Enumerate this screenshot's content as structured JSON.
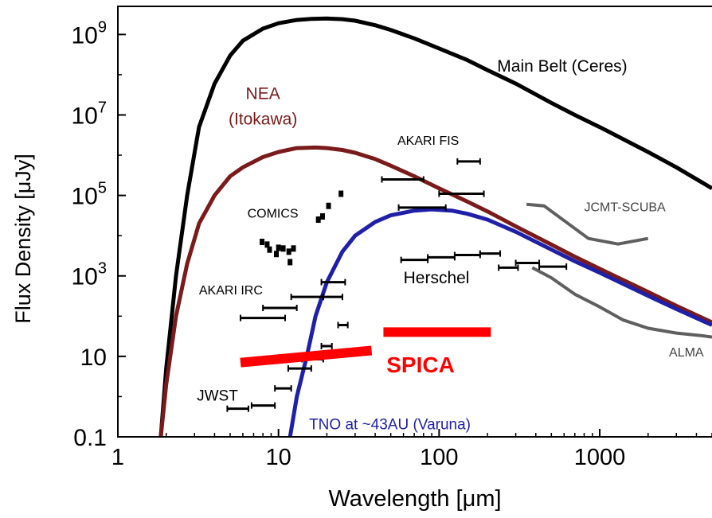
{
  "chart_data": {
    "type": "line",
    "xlabel": "Wavelength   [μm]",
    "ylabel": "Flux Density   [μJy]",
    "x_scale": "log",
    "y_scale": "log",
    "xlim": [
      1,
      5000
    ],
    "ylim": [
      0.1,
      5000000000
    ],
    "x_ticks": [
      {
        "value": 1,
        "label": "1"
      },
      {
        "value": 10,
        "label": "10"
      },
      {
        "value": 100,
        "label": "100"
      },
      {
        "value": 1000,
        "label": "1000"
      }
    ],
    "y_ticks": [
      {
        "value": 0.1,
        "base": "0.1",
        "exp": ""
      },
      {
        "value": 10,
        "base": "10",
        "exp": ""
      },
      {
        "value": 1000,
        "base": "10",
        "exp": "3"
      },
      {
        "value": 100000,
        "base": "10",
        "exp": "5"
      },
      {
        "value": 10000000,
        "base": "10",
        "exp": "7"
      },
      {
        "value": 1000000000,
        "base": "10",
        "exp": "9"
      }
    ],
    "colors": {
      "ceres": "#000000",
      "nea": "#7a1a1a",
      "tno": "#1f1fa8",
      "instruments": "#5f5f5f",
      "spica": "#ff0000",
      "points": "#000000"
    },
    "series": [
      {
        "name": "Main Belt (Ceres)",
        "color": "#000000",
        "points": [
          [
            1.85,
            0.1
          ],
          [
            2.0,
            5
          ],
          [
            2.3,
            1000
          ],
          [
            2.7,
            100000
          ],
          [
            3.2,
            5000000
          ],
          [
            4,
            60000000
          ],
          [
            5,
            300000000
          ],
          [
            6,
            700000000
          ],
          [
            8,
            1400000000
          ],
          [
            10,
            1900000000
          ],
          [
            13,
            2300000000
          ],
          [
            16,
            2450000000
          ],
          [
            20,
            2500000000
          ],
          [
            25,
            2400000000
          ],
          [
            30,
            2200000000
          ],
          [
            40,
            1700000000
          ],
          [
            50,
            1300000000
          ],
          [
            70,
            800000000
          ],
          [
            100,
            450000000
          ],
          [
            150,
            230000000
          ],
          [
            200,
            130000000
          ],
          [
            300,
            60000000
          ],
          [
            500,
            20000000
          ],
          [
            700,
            10000000
          ],
          [
            1000,
            5000000
          ],
          [
            2000,
            1200000
          ],
          [
            3000,
            500000
          ],
          [
            5000,
            150000
          ]
        ]
      },
      {
        "name": "NEA (Itokawa)",
        "color": "#7a1a1a",
        "points": [
          [
            1.85,
            0.1
          ],
          [
            2.0,
            2
          ],
          [
            2.3,
            100
          ],
          [
            2.7,
            2000
          ],
          [
            3.2,
            20000
          ],
          [
            4,
            100000
          ],
          [
            5,
            300000
          ],
          [
            6,
            500000
          ],
          [
            8,
            900000
          ],
          [
            10,
            1200000
          ],
          [
            13,
            1500000
          ],
          [
            17,
            1550000
          ],
          [
            20,
            1500000
          ],
          [
            25,
            1350000
          ],
          [
            30,
            1150000
          ],
          [
            40,
            800000
          ],
          [
            50,
            550000
          ],
          [
            70,
            300000
          ],
          [
            100,
            150000
          ],
          [
            150,
            70000
          ],
          [
            200,
            40000
          ],
          [
            300,
            17000
          ],
          [
            500,
            6000
          ],
          [
            700,
            3000
          ],
          [
            1000,
            1500
          ],
          [
            2000,
            400
          ],
          [
            3000,
            180
          ],
          [
            5000,
            70
          ]
        ]
      },
      {
        "name": "TNO at ~43AU (Varuna)",
        "color": "#1f1fa8",
        "points": [
          [
            11.8,
            0.1
          ],
          [
            13,
            1
          ],
          [
            15,
            10
          ],
          [
            17,
            100
          ],
          [
            20,
            700
          ],
          [
            25,
            4000
          ],
          [
            30,
            10000
          ],
          [
            40,
            22000
          ],
          [
            50,
            32000
          ],
          [
            70,
            42000
          ],
          [
            90,
            45000
          ],
          [
            120,
            42000
          ],
          [
            150,
            35000
          ],
          [
            200,
            25000
          ],
          [
            300,
            12500
          ],
          [
            500,
            4500
          ],
          [
            700,
            2300
          ],
          [
            1000,
            1200
          ],
          [
            2000,
            320
          ],
          [
            3000,
            150
          ],
          [
            5000,
            60
          ]
        ]
      }
    ],
    "instrument_curves": [
      {
        "name": "JCMT-SCUBA",
        "color": "#5f5f5f",
        "points": [
          [
            350,
            60000
          ],
          [
            450,
            55000
          ],
          [
            850,
            8500
          ],
          [
            1300,
            6200
          ],
          [
            2000,
            8500
          ]
        ]
      },
      {
        "name": "ALMA",
        "color": "#5f5f5f",
        "points": [
          [
            380,
            1600
          ],
          [
            500,
            900
          ],
          [
            700,
            350
          ],
          [
            1000,
            170
          ],
          [
            1400,
            80
          ],
          [
            2000,
            50
          ],
          [
            3000,
            38
          ],
          [
            4500,
            32
          ],
          [
            5000,
            30
          ]
        ]
      }
    ],
    "spica_lines": [
      {
        "x": [
          5.8,
          38
        ],
        "y": [
          7,
          14
        ]
      },
      {
        "x": [
          45,
          210
        ],
        "y": [
          40,
          40
        ]
      }
    ],
    "sensitivity_segments": [
      {
        "group": "JWST",
        "x": [
          4.8,
          6.5
        ],
        "y": 0.5
      },
      {
        "group": "JWST",
        "x": [
          6.8,
          9.5
        ],
        "y": 0.6
      },
      {
        "group": "JWST",
        "x": [
          9.5,
          12
        ],
        "y": 1.6
      },
      {
        "group": "JWST",
        "x": [
          11.5,
          16
        ],
        "y": 5
      },
      {
        "group": "JWST",
        "x": [
          14,
          19
        ],
        "y": 8.5
      },
      {
        "group": "JWST",
        "x": [
          18.5,
          21.5
        ],
        "y": 18
      },
      {
        "group": "JWST",
        "x": [
          23.5,
          27
        ],
        "y": 60
      },
      {
        "group": "AKARI IRC",
        "x": [
          5.8,
          11
        ],
        "y": 90
      },
      {
        "group": "AKARI IRC",
        "x": [
          8,
          13
        ],
        "y": 160
      },
      {
        "group": "AKARI IRC",
        "x": [
          12,
          19
        ],
        "y": 300
      },
      {
        "group": "AKARI IRC",
        "x": [
          19,
          25
        ],
        "y": 300
      },
      {
        "group": "AKARI IRC",
        "x": [
          18.5,
          26
        ],
        "y": 700
      },
      {
        "group": "AKARI FIS",
        "x": [
          44,
          80
        ],
        "y": 250000
      },
      {
        "group": "AKARI FIS",
        "x": [
          56,
          110
        ],
        "y": 50000
      },
      {
        "group": "AKARI FIS",
        "x": [
          100,
          190
        ],
        "y": 110000
      },
      {
        "group": "AKARI FIS",
        "x": [
          130,
          180
        ],
        "y": 700000
      },
      {
        "group": "Herschel",
        "x": [
          58,
          85
        ],
        "y": 2500
      },
      {
        "group": "Herschel",
        "x": [
          85,
          125
        ],
        "y": 2900
      },
      {
        "group": "Herschel",
        "x": [
          125,
          180
        ],
        "y": 3300
      },
      {
        "group": "Herschel",
        "x": [
          180,
          240
        ],
        "y": 3600
      },
      {
        "group": "Herschel",
        "x": [
          235,
          310
        ],
        "y": 1600
      },
      {
        "group": "Herschel",
        "x": [
          300,
          420
        ],
        "y": 2100
      },
      {
        "group": "Herschel",
        "x": [
          420,
          620
        ],
        "y": 1700
      }
    ],
    "comics_points": [
      {
        "x": 7.9,
        "y": 7000
      },
      {
        "x": 8.5,
        "y": 6000
      },
      {
        "x": 8.8,
        "y": 4500
      },
      {
        "x": 9.7,
        "y": 3500
      },
      {
        "x": 10.0,
        "y": 5000
      },
      {
        "x": 10.7,
        "y": 4800
      },
      {
        "x": 11.6,
        "y": 4000
      },
      {
        "x": 12.4,
        "y": 4800
      },
      {
        "x": 11.8,
        "y": 2200
      },
      {
        "x": 17.7,
        "y": 25000
      },
      {
        "x": 18.8,
        "y": 30000
      },
      {
        "x": 20.5,
        "y": 55000
      },
      {
        "x": 24.5,
        "y": 110000
      }
    ],
    "annotations": [
      {
        "text": "Main Belt (Ceres)",
        "x": 230,
        "y": 120000000,
        "color": "#000000",
        "size": 21,
        "anchor": "start"
      },
      {
        "text": "NEA",
        "x": 8,
        "y": 25000000,
        "color": "#7a1a1a",
        "size": 21,
        "anchor": "middle"
      },
      {
        "text": "(Itokawa)",
        "x": 8,
        "y": 5800000,
        "color": "#7a1a1a",
        "size": 21,
        "anchor": "middle"
      },
      {
        "text": "AKARI FIS",
        "x": 55,
        "y": 1800000,
        "color": "#000000",
        "size": 16,
        "anchor": "start"
      },
      {
        "text": "COMICS",
        "x": 6.4,
        "y": 28000,
        "color": "#000000",
        "size": 16,
        "anchor": "start"
      },
      {
        "text": "JCMT-SCUBA",
        "x": 800,
        "y": 40000,
        "color": "#444444",
        "size": 16,
        "anchor": "start"
      },
      {
        "text": "AKARI IRC",
        "x": 3.2,
        "y": 350,
        "color": "#000000",
        "size": 16,
        "anchor": "start"
      },
      {
        "text": "Herschel",
        "x": 60,
        "y": 650,
        "color": "#000000",
        "size": 21,
        "anchor": "start"
      },
      {
        "text": "ALMA",
        "x": 2700,
        "y": 10,
        "color": "#444444",
        "size": 16,
        "anchor": "start"
      },
      {
        "text": "SPICA",
        "x": 47,
        "y": 4,
        "color": "#ff0000",
        "size": 28,
        "anchor": "start",
        "bold": true
      },
      {
        "text": "JWST",
        "x": 3.1,
        "y": 0.8,
        "color": "#000000",
        "size": 19,
        "anchor": "start"
      },
      {
        "text": "TNO at ~43AU (Varuna)",
        "x": 15.5,
        "y": 0.155,
        "color": "#1f1fa8",
        "size": 19,
        "anchor": "start"
      }
    ]
  }
}
